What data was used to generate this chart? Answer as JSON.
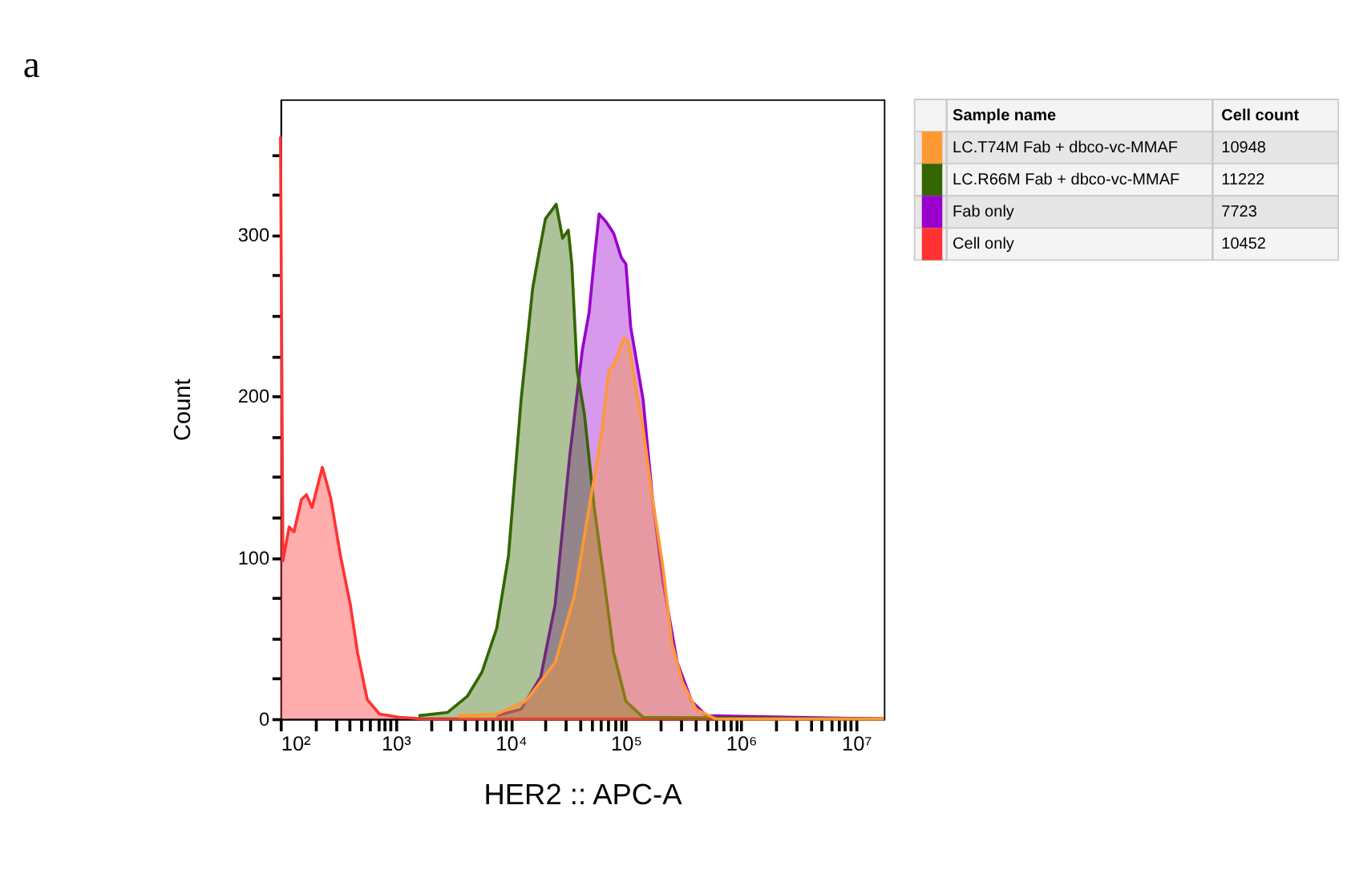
{
  "chart_data": {
    "type": "area",
    "title": "a",
    "xlabel": "HER2 :: APC-A",
    "ylabel": "Count",
    "legend_title": "Sample name",
    "legend": "top right",
    "log": "x",
    "grid": false,
    "annotations": [
      "Cell count",
      "10948",
      "11222",
      "7723",
      "10452"
    ],
    "xlim": [
      100,
      17400000
    ],
    "xticks": [
      {
        "value": 100,
        "label": "10²"
      },
      {
        "value": 200,
        "label": null
      },
      {
        "value": 300,
        "label": null
      },
      {
        "value": 400,
        "label": null
      },
      {
        "value": 500,
        "label": null
      },
      {
        "value": 600,
        "label": null
      },
      {
        "value": 700,
        "label": null
      },
      {
        "value": 800,
        "label": null
      },
      {
        "value": 900,
        "label": null
      },
      {
        "value": 1000,
        "label": "10³"
      },
      {
        "value": 2000,
        "label": null
      },
      {
        "value": 3000,
        "label": null
      },
      {
        "value": 4000,
        "label": null
      },
      {
        "value": 5000,
        "label": null
      },
      {
        "value": 6000,
        "label": null
      },
      {
        "value": 7000,
        "label": null
      },
      {
        "value": 8000,
        "label": null
      },
      {
        "value": 9000,
        "label": null
      },
      {
        "value": 10000,
        "label": "10⁴"
      },
      {
        "value": 20000,
        "label": null
      },
      {
        "value": 30000,
        "label": null
      },
      {
        "value": 40000,
        "label": null
      },
      {
        "value": 50000,
        "label": null
      },
      {
        "value": 60000,
        "label": null
      },
      {
        "value": 70000,
        "label": null
      },
      {
        "value": 80000,
        "label": null
      },
      {
        "value": 90000,
        "label": null
      },
      {
        "value": 100000,
        "label": "10⁵"
      },
      {
        "value": 200000,
        "label": null
      },
      {
        "value": 300000,
        "label": null
      },
      {
        "value": 400000,
        "label": null
      },
      {
        "value": 500000,
        "label": null
      },
      {
        "value": 600000,
        "label": null
      },
      {
        "value": 700000,
        "label": null
      },
      {
        "value": 800000,
        "label": null
      },
      {
        "value": 900000,
        "label": null
      },
      {
        "value": 1000000,
        "label": "10⁶"
      },
      {
        "value": 2000000,
        "label": null
      },
      {
        "value": 3000000,
        "label": null
      },
      {
        "value": 4000000,
        "label": null
      },
      {
        "value": 5000000,
        "label": null
      },
      {
        "value": 6000000,
        "label": null
      },
      {
        "value": 7000000,
        "label": null
      },
      {
        "value": 8000000,
        "label": null
      },
      {
        "value": 9000000,
        "label": null
      },
      {
        "value": 10000000,
        "label": "10⁷"
      }
    ],
    "ylim": [
      0,
      384
    ],
    "yticks": [
      0,
      {
        "value": 25,
        "label": null
      },
      {
        "value": 50,
        "label": null
      },
      {
        "value": 75,
        "label": null
      },
      100,
      {
        "value": 125,
        "label": null
      },
      {
        "value": 150,
        "label": null
      },
      {
        "value": 175,
        "label": null
      },
      200,
      {
        "value": 225,
        "label": null
      },
      {
        "value": 250,
        "label": null
      },
      {
        "value": 275,
        "label": null
      },
      300,
      {
        "value": 325,
        "label": null
      },
      {
        "value": 350,
        "label": null
      }
    ],
    "series": [
      {
        "name": "LC.T74M Fab + dbco-vc-MMAF",
        "color": "#ff9933",
        "x": [
          3470,
          7540,
          13500,
          24300,
          35900,
          47900,
          61600,
          71200,
          78300,
          95500,
          105000,
          115000,
          141000,
          170000,
          209000,
          251000,
          309000,
          407000,
          603000,
          17400000
        ],
        "values": [
          2,
          3,
          11,
          35,
          77,
          131,
          177,
          216,
          219,
          236,
          234,
          216,
          180,
          137,
          95,
          47,
          23,
          6,
          0,
          0
        ]
      },
      {
        "name": "LC.R66M Fab + dbco-vc-MMAF",
        "color": "#336600",
        "x": [
          1580,
          2820,
          4190,
          5620,
          7540,
          9550,
          12300,
          15500,
          17400,
          20000,
          24800,
          28200,
          31600,
          33900,
          37700,
          43600,
          53100,
          64600,
          78300,
          100000,
          141000,
          17400000
        ],
        "values": [
          2,
          4,
          14,
          29,
          56,
          101,
          198,
          267,
          287,
          310,
          319,
          298,
          303,
          282,
          216,
          189,
          131,
          86,
          41,
          11,
          1,
          0
        ]
      },
      {
        "name": "Fab only",
        "color": "#9900cc",
        "x": [
          7540,
          12300,
          18200,
          24300,
          32400,
          41700,
          47900,
          53100,
          58500,
          67600,
          78300,
          91200,
          100000,
          110000,
          141000,
          170000,
          209000,
          279000,
          372000,
          500000,
          17400000
        ],
        "values": [
          2,
          6,
          26,
          71,
          162,
          228,
          252,
          285,
          313,
          308,
          301,
          286,
          282,
          243,
          198,
          137,
          86,
          35,
          11,
          2,
          0
        ]
      },
      {
        "name": "Cell only",
        "color": "#ff3333",
        "x": [
          100,
          105,
          119,
          131,
          152,
          168,
          188,
          231,
          273,
          332,
          404,
          467,
          567,
          724,
          1070,
          1740,
          17400000
        ],
        "values": [
          361,
          98,
          119,
          116,
          136,
          139,
          131,
          156,
          137,
          101,
          71,
          41,
          12,
          3,
          1,
          0,
          0
        ]
      }
    ]
  }
}
